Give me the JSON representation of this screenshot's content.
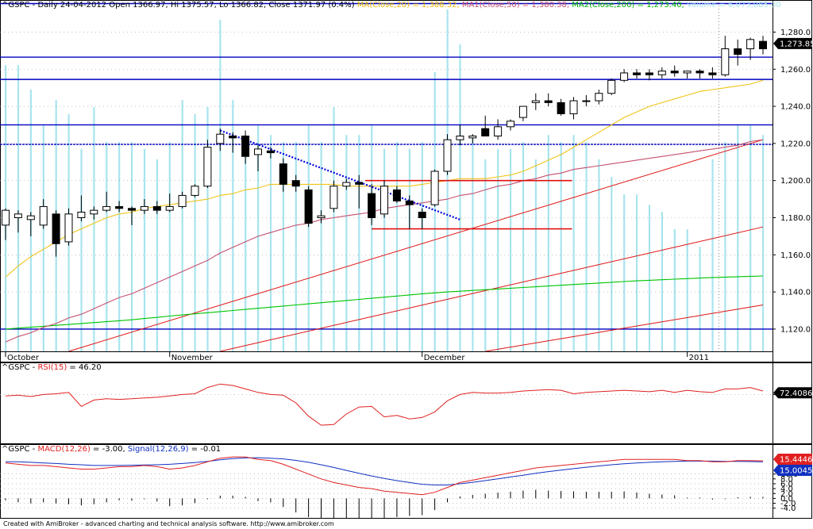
{
  "header": {
    "symbol": "^GSPC",
    "main": "^GSPC - Daily 24-04-2012 Open 1366.97, Hi 1375.57, Lo 1366.82, Close 1371.97 (0.4%)",
    "ma20": "MA(Close,20) = 1,388.32,",
    "ma50": "MA1(Close,50) = 1,380.38,",
    "ma200": "MA2(Close,200) = 1,273.40,",
    "volume": "Volume = 6,073,085.00",
    "rsi_prefix": "^GSPC - ",
    "rsi_name": "RSI(15)",
    "rsi_value": " = 46.20",
    "macd_prefix": "^GSPC - ",
    "macd_name": "MACD(12,26)",
    "macd_value": " = -3.00,",
    "signal_name": "Signal(12,26,9)",
    "signal_value": " = -0.01"
  },
  "footer": "Created with AmiBroker - advanced charting and technical analysis software. http://www.amibroker.com",
  "colors": {
    "up": "#ffffff",
    "down": "#000000",
    "ma20": "#f0c419",
    "ma50": "#c4506e",
    "ma200": "#00c400",
    "volume": "#a8e4ee",
    "hline": "#0000c0",
    "redline": "#e01010",
    "trend": "#0000dd",
    "rsi": "#e02020",
    "macd": "#e02020",
    "signal": "#1030c0",
    "badge_price": "#000000",
    "badge_rsi": "#000000",
    "badge_macd": "#e02020",
    "badge_signal": "#1030c0"
  },
  "chart_data": [
    {
      "type": "candlestick",
      "title": "^GSPC - Daily",
      "ylim": [
        1108,
        1296
      ],
      "y_ticks": [
        "1,280.0",
        "1,260.0",
        "1,240.0",
        "1,220.0",
        "1,200.0",
        "1,180.0",
        "1,160.0",
        "1,140.0",
        "1,120.0"
      ],
      "y_tick_values": [
        1280,
        1260,
        1240,
        1220,
        1200,
        1180,
        1160,
        1140,
        1120
      ],
      "x_labels": [
        {
          "label": "October",
          "index": 0
        },
        {
          "label": "November",
          "index": 13
        },
        {
          "label": "December",
          "index": 33
        },
        {
          "label": "2011",
          "index": 54
        }
      ],
      "last_price_label": "1,273.85",
      "last_price": 1273.85,
      "candles": [
        {
          "o": 1176,
          "h": 1185,
          "l": 1168,
          "c": 1184
        },
        {
          "o": 1180,
          "h": 1184,
          "l": 1172,
          "c": 1182
        },
        {
          "o": 1179,
          "h": 1183,
          "l": 1170,
          "c": 1181
        },
        {
          "o": 1176,
          "h": 1190,
          "l": 1174,
          "c": 1186
        },
        {
          "o": 1182,
          "h": 1184,
          "l": 1159,
          "c": 1166
        },
        {
          "o": 1167,
          "h": 1185,
          "l": 1165,
          "c": 1182
        },
        {
          "o": 1180,
          "h": 1192,
          "l": 1178,
          "c": 1183
        },
        {
          "o": 1182,
          "h": 1186,
          "l": 1179,
          "c": 1184
        },
        {
          "o": 1184,
          "h": 1194,
          "l": 1183,
          "c": 1186
        },
        {
          "o": 1186,
          "h": 1189,
          "l": 1183,
          "c": 1185
        },
        {
          "o": 1185,
          "h": 1186,
          "l": 1176,
          "c": 1184
        },
        {
          "o": 1184,
          "h": 1190,
          "l": 1182,
          "c": 1186
        },
        {
          "o": 1186,
          "h": 1189,
          "l": 1182,
          "c": 1184
        },
        {
          "o": 1184,
          "h": 1193,
          "l": 1183,
          "c": 1186
        },
        {
          "o": 1186,
          "h": 1194,
          "l": 1185,
          "c": 1192
        },
        {
          "o": 1192,
          "h": 1198,
          "l": 1191,
          "c": 1197
        },
        {
          "o": 1197,
          "h": 1222,
          "l": 1196,
          "c": 1218
        },
        {
          "o": 1220,
          "h": 1228,
          "l": 1216,
          "c": 1225
        },
        {
          "o": 1224,
          "h": 1226,
          "l": 1215,
          "c": 1223
        },
        {
          "o": 1224,
          "h": 1227,
          "l": 1209,
          "c": 1213
        },
        {
          "o": 1214,
          "h": 1219,
          "l": 1205,
          "c": 1217
        },
        {
          "o": 1216,
          "h": 1218,
          "l": 1212,
          "c": 1215
        },
        {
          "o": 1209,
          "h": 1212,
          "l": 1194,
          "c": 1198
        },
        {
          "o": 1200,
          "h": 1203,
          "l": 1194,
          "c": 1197
        },
        {
          "o": 1195,
          "h": 1197,
          "l": 1175,
          "c": 1177
        },
        {
          "o": 1180,
          "h": 1184,
          "l": 1177,
          "c": 1181
        },
        {
          "o": 1185,
          "h": 1200,
          "l": 1183,
          "c": 1197
        },
        {
          "o": 1197,
          "h": 1201,
          "l": 1195,
          "c": 1199
        },
        {
          "o": 1199,
          "h": 1203,
          "l": 1185,
          "c": 1198
        },
        {
          "o": 1193,
          "h": 1198,
          "l": 1176,
          "c": 1180
        },
        {
          "o": 1182,
          "h": 1200,
          "l": 1180,
          "c": 1197
        },
        {
          "o": 1195,
          "h": 1197,
          "l": 1188,
          "c": 1189
        },
        {
          "o": 1189,
          "h": 1192,
          "l": 1174,
          "c": 1187
        },
        {
          "o": 1183,
          "h": 1185,
          "l": 1174,
          "c": 1180
        },
        {
          "o": 1187,
          "h": 1206,
          "l": 1186,
          "c": 1205
        },
        {
          "o": 1205,
          "h": 1225,
          "l": 1203,
          "c": 1222
        },
        {
          "o": 1222,
          "h": 1230,
          "l": 1219,
          "c": 1224
        },
        {
          "o": 1223,
          "h": 1225,
          "l": 1220,
          "c": 1224
        },
        {
          "o": 1228,
          "h": 1235,
          "l": 1224,
          "c": 1224
        },
        {
          "o": 1224,
          "h": 1233,
          "l": 1222,
          "c": 1229
        },
        {
          "o": 1229,
          "h": 1233,
          "l": 1227,
          "c": 1232
        },
        {
          "o": 1234,
          "h": 1240,
          "l": 1232,
          "c": 1240
        },
        {
          "o": 1242,
          "h": 1247,
          "l": 1238,
          "c": 1243
        },
        {
          "o": 1243,
          "h": 1247,
          "l": 1240,
          "c": 1242
        },
        {
          "o": 1242,
          "h": 1244,
          "l": 1235,
          "c": 1236
        },
        {
          "o": 1236,
          "h": 1245,
          "l": 1233,
          "c": 1243
        },
        {
          "o": 1243,
          "h": 1246,
          "l": 1240,
          "c": 1243
        },
        {
          "o": 1243,
          "h": 1249,
          "l": 1241,
          "c": 1247
        },
        {
          "o": 1247,
          "h": 1255,
          "l": 1246,
          "c": 1254
        },
        {
          "o": 1254,
          "h": 1260,
          "l": 1253,
          "c": 1258
        },
        {
          "o": 1258,
          "h": 1260,
          "l": 1255,
          "c": 1257
        },
        {
          "o": 1258,
          "h": 1260,
          "l": 1254,
          "c": 1257
        },
        {
          "o": 1257,
          "h": 1261,
          "l": 1255,
          "c": 1259
        },
        {
          "o": 1259,
          "h": 1262,
          "l": 1256,
          "c": 1258
        },
        {
          "o": 1258,
          "h": 1259,
          "l": 1255,
          "c": 1259
        },
        {
          "o": 1259,
          "h": 1260,
          "l": 1255,
          "c": 1258
        },
        {
          "o": 1258,
          "h": 1261,
          "l": 1255,
          "c": 1257
        },
        {
          "o": 1257,
          "h": 1278,
          "l": 1256,
          "c": 1271
        },
        {
          "o": 1271,
          "h": 1276,
          "l": 1262,
          "c": 1268
        },
        {
          "o": 1271,
          "h": 1277,
          "l": 1265,
          "c": 1276
        },
        {
          "o": 1275,
          "h": 1278,
          "l": 1268,
          "c": 1271
        }
      ],
      "ma20": [
        1148,
        1154,
        1159,
        1163,
        1167,
        1171,
        1174,
        1177,
        1180,
        1182,
        1183,
        1185,
        1186,
        1187,
        1188,
        1189,
        1190,
        1192,
        1193,
        1195,
        1196,
        1198,
        1198,
        1198,
        1198,
        1198,
        1198,
        1197,
        1197,
        1197,
        1197,
        1197,
        1197,
        1198,
        1199,
        1200,
        1201,
        1201,
        1201,
        1202,
        1203,
        1205,
        1208,
        1211,
        1214,
        1218,
        1222,
        1226,
        1230,
        1234,
        1237,
        1240,
        1242,
        1244,
        1246,
        1248,
        1249,
        1250,
        1251,
        1252,
        1254
      ],
      "ma50": [
        1113,
        1116,
        1118,
        1121,
        1123,
        1126,
        1128,
        1131,
        1134,
        1137,
        1139,
        1142,
        1145,
        1148,
        1151,
        1154,
        1157,
        1161,
        1164,
        1167,
        1170,
        1172,
        1174,
        1176,
        1177,
        1179,
        1180,
        1181,
        1182,
        1183,
        1185,
        1186,
        1187,
        1188,
        1189,
        1190,
        1192,
        1193,
        1195,
        1197,
        1198,
        1200,
        1201,
        1203,
        1204,
        1206,
        1207,
        1208,
        1209,
        1210,
        1211,
        1212,
        1213,
        1214,
        1215,
        1216,
        1217,
        1218,
        1219,
        1221,
        1222
      ],
      "ma200": [
        1120,
        1120.5,
        1121,
        1121.5,
        1122,
        1122.5,
        1123,
        1123.5,
        1124,
        1124.5,
        1125,
        1125.7,
        1126.3,
        1127,
        1127.6,
        1128.2,
        1128.8,
        1129.4,
        1130,
        1130.6,
        1131.2,
        1131.8,
        1132.4,
        1133,
        1133.6,
        1134.2,
        1134.8,
        1135.4,
        1136,
        1136.6,
        1137.2,
        1137.8,
        1138.4,
        1139,
        1139.5,
        1140,
        1140.4,
        1140.8,
        1141.2,
        1141.6,
        1142,
        1142.4,
        1142.8,
        1143.2,
        1143.6,
        1144,
        1144.4,
        1144.8,
        1145.2,
        1145.6,
        1146,
        1146.3,
        1146.6,
        1146.9,
        1147.2,
        1147.5,
        1147.8,
        1148,
        1148.2,
        1148.4,
        1148.6
      ],
      "volume": [
        0.82,
        0.82,
        0.75,
        0.65,
        0.72,
        0.68,
        0.58,
        0.7,
        0.6,
        0.6,
        0.6,
        0.58,
        0.55,
        0.6,
        0.72,
        0.68,
        0.7,
        0.95,
        0.72,
        0.62,
        0.65,
        0.62,
        0.6,
        0.6,
        0.65,
        0.6,
        0.7,
        0.62,
        0.62,
        0.65,
        0.58,
        0.6,
        0.58,
        0.6,
        0.8,
        0.98,
        0.88,
        0.62,
        0.55,
        0.58,
        0.58,
        0.6,
        0.55,
        0.62,
        0.6,
        0.62,
        0.6,
        0.55,
        0.5,
        0.45,
        0.45,
        0.42,
        0.4,
        0.35,
        0.35,
        0.3,
        0.55,
        0.6,
        0.65,
        0.65,
        0.62
      ],
      "horizontal_lines": [
        1266.5,
        1254.5,
        1230,
        1219.5,
        1120
      ],
      "support_resistance": [
        {
          "y": 1200,
          "from": 29,
          "to": 46
        },
        {
          "y": 1174,
          "from": 29,
          "to": 46
        }
      ],
      "dotted_trend": {
        "from_index": 17,
        "from_value": 1227,
        "to_index": 36,
        "to_value": 1179
      },
      "channel_lines": [
        {
          "from_index": 5,
          "from_value": 1108,
          "to_index": 60,
          "to_value": 1222
        },
        {
          "from_index": 17,
          "from_value": 1108,
          "to_index": 60,
          "to_value": 1175
        },
        {
          "from_index": 38,
          "from_value": 1108,
          "to_index": 60,
          "to_value": 1133
        }
      ]
    },
    {
      "type": "line",
      "title": "RSI(15)",
      "ylim": [
        0,
        100
      ],
      "y_ticks": [
        "70.0"
      ],
      "y_tick_values": [
        70
      ],
      "last_value_label": "72.4086",
      "last_value": 72.4,
      "values": [
        68,
        69,
        67,
        70,
        71,
        73,
        53,
        62,
        64,
        63,
        64,
        65,
        66,
        68,
        70,
        71,
        80,
        85,
        83,
        78,
        73,
        70,
        69,
        58,
        39,
        26,
        27,
        42,
        52,
        53,
        38,
        40,
        35,
        37,
        45,
        61,
        70,
        73,
        72,
        72,
        73,
        75,
        76,
        77,
        76,
        71,
        73,
        74,
        75,
        76,
        75,
        74,
        76,
        73,
        76,
        74,
        73,
        78,
        78,
        80,
        75
      ]
    },
    {
      "type": "line",
      "title": "MACD(12,26) / Signal(12,26,9)",
      "ylim": [
        -8,
        19
      ],
      "y_ticks": [
        "10.0",
        "8.0",
        "6.0",
        "4.0",
        "2.0",
        "0.0",
        "-2.0",
        "-4.0"
      ],
      "y_tick_values": [
        10,
        8,
        6,
        4,
        2,
        0,
        -2,
        -4
      ],
      "last_macd_label": "15.4446",
      "last_signal_label": "15.0045",
      "macd": [
        14.5,
        14,
        13.5,
        13.5,
        13,
        12.5,
        12,
        12,
        12.5,
        13,
        13,
        13.5,
        13,
        12,
        12.5,
        13.5,
        15,
        16.5,
        17,
        17,
        16,
        15.5,
        14,
        12,
        10,
        8,
        6.5,
        5.5,
        4.5,
        4,
        3,
        2.5,
        2,
        1.5,
        2.5,
        4.5,
        6.5,
        7.5,
        8.5,
        9.5,
        10.5,
        11.5,
        12.5,
        13,
        13.5,
        14,
        14.5,
        15,
        15.5,
        16,
        16,
        16,
        16,
        16,
        15.5,
        15.5,
        15,
        15,
        15.5,
        15.5,
        15.4
      ],
      "signal": [
        15,
        15,
        14.8,
        14.5,
        14.3,
        14,
        13.8,
        13.5,
        13.5,
        13.5,
        13.6,
        13.7,
        13.8,
        14,
        14.3,
        14.7,
        15.2,
        15.8,
        16.3,
        16.6,
        16.7,
        16.5,
        16.2,
        15.6,
        14.8,
        13.8,
        12.7,
        11.5,
        10.3,
        9.2,
        8.2,
        7.3,
        6.5,
        5.8,
        5.5,
        5.5,
        6,
        6.6,
        7.3,
        8,
        8.8,
        9.5,
        10.3,
        11,
        11.6,
        12.2,
        12.8,
        13.3,
        13.8,
        14.2,
        14.5,
        14.8,
        15,
        15.2,
        15.3,
        15.3,
        15.3,
        15.2,
        15.2,
        15.1,
        15.0
      ]
    }
  ]
}
